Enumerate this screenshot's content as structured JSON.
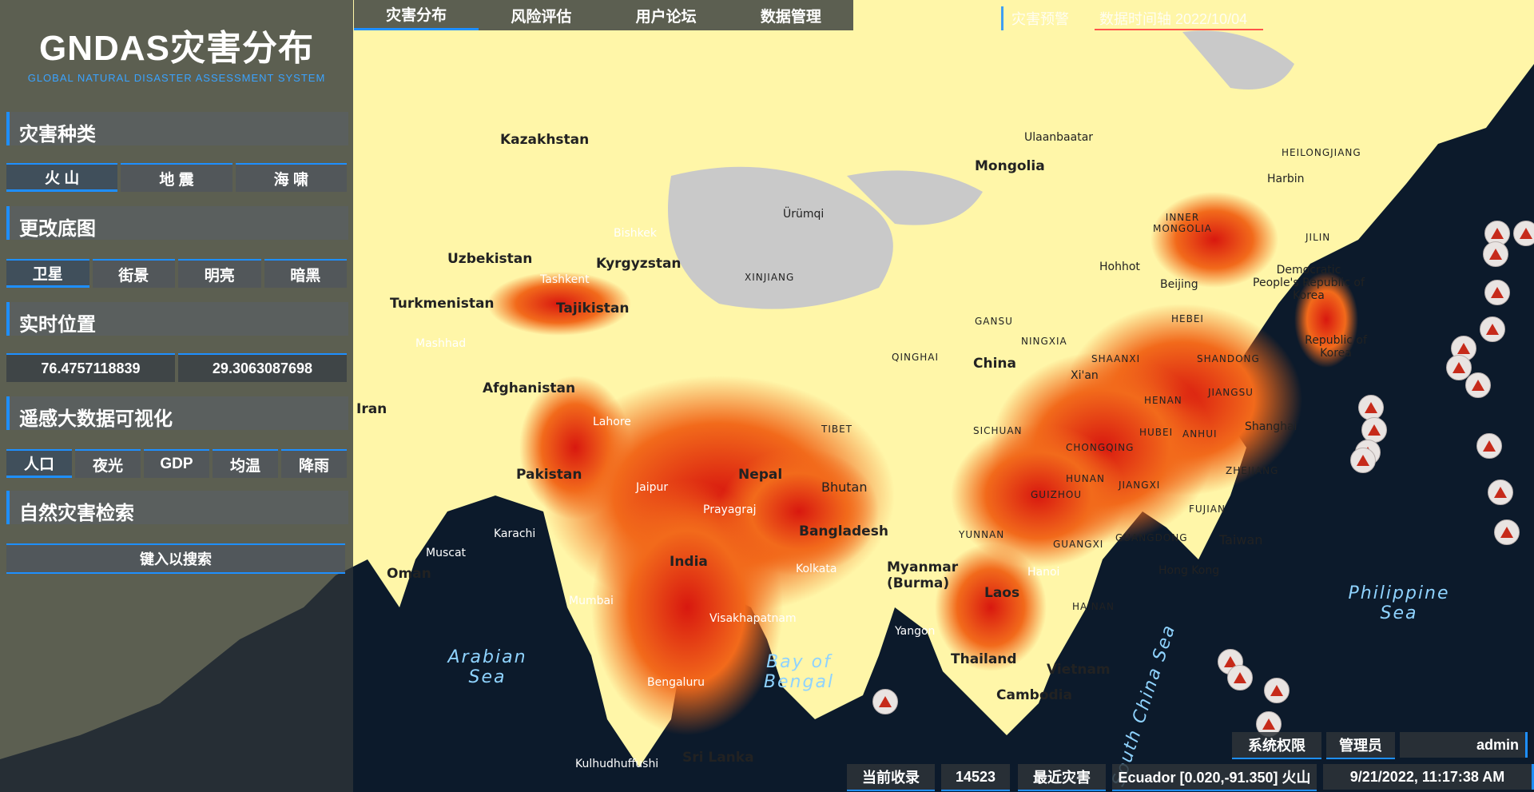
{
  "app": {
    "title": "GNDAS灾害分布",
    "subtitle": "GLOBAL NATURAL DISASTER ASSESSMENT SYSTEM"
  },
  "sidebar": {
    "sections": {
      "disaster_type": "灾害种类",
      "basemap": "更改底图",
      "position": "实时位置",
      "remote_sensing": "遥感大数据可视化",
      "search": "自然灾害检索"
    },
    "disaster_buttons": [
      "火 山",
      "地 震",
      "海 啸"
    ],
    "basemap_buttons": [
      "卫星",
      "街景",
      "明亮",
      "暗黑"
    ],
    "coords": {
      "lon": "76.4757118839",
      "lat": "29.3063087698"
    },
    "rs_buttons": [
      "人口",
      "夜光",
      "GDP",
      "均温",
      "降雨"
    ],
    "search_label": "键入以搜索"
  },
  "topnav": {
    "tabs": [
      "灾害分布",
      "风险评估",
      "用户论坛",
      "数据管理"
    ]
  },
  "top_right": {
    "tab_a": "灾害预警",
    "tab_b": "数据时间轴 2022/10/04"
  },
  "status": {
    "perm_label": "系统权限",
    "role": "管理员",
    "user": "admin",
    "count_label": "当前收录",
    "count": "14523",
    "recent_label": "最近灾害",
    "recent_value": "Ecuador [0.020,-91.350] 火山",
    "datetime": "9/21/2022, 11:17:38 AM"
  },
  "map_labels": {
    "countries": [
      "Kazakhstan",
      "Mongolia",
      "Uzbekistan",
      "Kyrgyzstan",
      "Turkmenistan",
      "Tajikistan",
      "Afghanistan",
      "Pakistan",
      "Iran",
      "India",
      "Nepal",
      "Bhutan",
      "Bangladesh",
      "China",
      "Myanmar (Burma)",
      "Laos",
      "Thailand",
      "Vietnam",
      "Cambodia",
      "Sri Lanka",
      "Oman",
      "Taiwan",
      "Democratic People's Republic of Korea",
      "Republic of Korea"
    ],
    "regions": [
      "XINJIANG",
      "TIBET",
      "QINGHAI",
      "GANSU",
      "SICHUAN",
      "CHONGQING",
      "HUBEI",
      "HENAN",
      "SHANDONG",
      "HEBEI",
      "SHAANXI",
      "NINGXIA",
      "INNER MONGOLIA",
      "JILIN",
      "HEILONGJIANG",
      "ANHUI",
      "JIANGSU",
      "ZHEJIANG",
      "JIANGXI",
      "HUNAN",
      "GUIZHOU",
      "YUNNAN",
      "GUANGXI",
      "GUANGDONG",
      "FUJIAN",
      "HAINAN"
    ],
    "cities": [
      "Shanghai",
      "Beijing",
      "Xi'an",
      "Hong Kong",
      "Hanoi",
      "Yangon",
      "Kolkata",
      "Mumbai",
      "Karachi",
      "Lahore",
      "Jaipur",
      "Prayagraj",
      "Visakhapatnam",
      "Bengaluru",
      "Muscat",
      "Tashkent",
      "Mashhad",
      "Bishkek",
      "Ürümqi",
      "Hohhot",
      "Harbin",
      "Ulaanbaatar",
      "Kulhudhuffushi"
    ],
    "seas": [
      "Arabian Sea",
      "Bay of Bengal",
      "Philippine Sea",
      "South China Sea"
    ]
  },
  "colors": {
    "accent": "#1e8fff",
    "panel": "#2e3438",
    "heat_high": "#d8180f",
    "heat_mid": "#f26a1b",
    "heat_low": "#fff6a8",
    "sea": "#0c1a2b"
  }
}
